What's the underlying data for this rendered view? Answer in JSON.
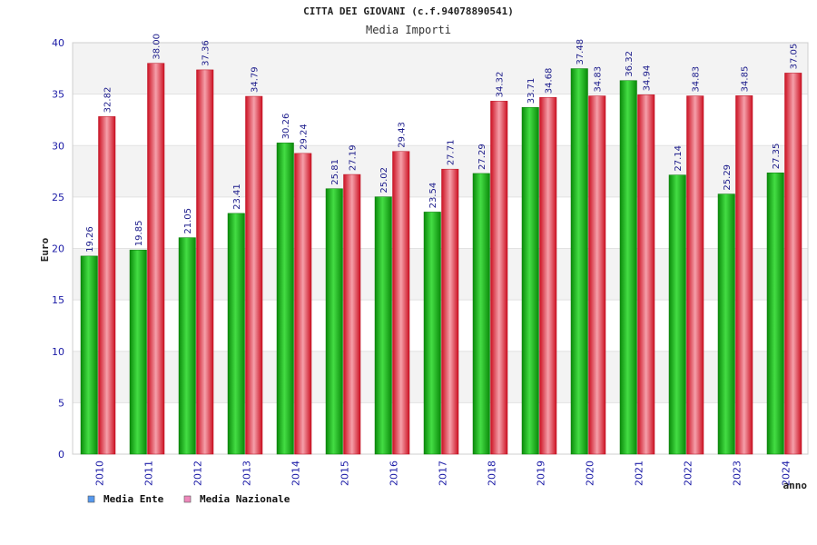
{
  "chart_data": {
    "type": "bar",
    "title": "CITTA DEI GIOVANI (c.f.94078890541)",
    "subtitle": "Media Importi",
    "xlabel": "anno",
    "ylabel": "Euro",
    "ylim": [
      0,
      40
    ],
    "yticks": [
      0,
      5,
      10,
      15,
      20,
      25,
      30,
      35,
      40
    ],
    "categories": [
      "2010",
      "2011",
      "2012",
      "2013",
      "2014",
      "2015",
      "2016",
      "2017",
      "2018",
      "2019",
      "2020",
      "2021",
      "2022",
      "2023",
      "2024"
    ],
    "series": [
      {
        "name": "Media Ente",
        "color": "#22bb22",
        "legend_color": "#5599ee",
        "values": [
          19.26,
          19.85,
          21.05,
          23.41,
          30.26,
          25.81,
          25.02,
          23.54,
          27.29,
          33.71,
          37.48,
          36.32,
          27.14,
          25.29,
          27.35
        ]
      },
      {
        "name": "Media Nazionale",
        "color": "#ee2233",
        "legend_color": "#ee88bb",
        "values": [
          32.82,
          38.0,
          37.36,
          34.79,
          29.24,
          27.19,
          29.43,
          27.71,
          34.32,
          34.68,
          34.83,
          34.94,
          34.83,
          34.85,
          37.05
        ]
      }
    ],
    "value_labels": [
      [
        "19.26",
        "19.85",
        "21.05",
        "23.41",
        "30.26",
        "25.81",
        "25.02",
        "23.54",
        "27.29",
        "33.71",
        "37.48",
        "36.32",
        "27.14",
        "25.29",
        "27.35"
      ],
      [
        "32.82",
        "38.00",
        "37.36",
        "34.79",
        "29.24",
        "27.19",
        "29.43",
        "27.71",
        "34.32",
        "34.68",
        "34.83",
        "34.94",
        "34.83",
        "34.85",
        "37.05"
      ]
    ],
    "grid": true,
    "legend": "bottom-left"
  }
}
